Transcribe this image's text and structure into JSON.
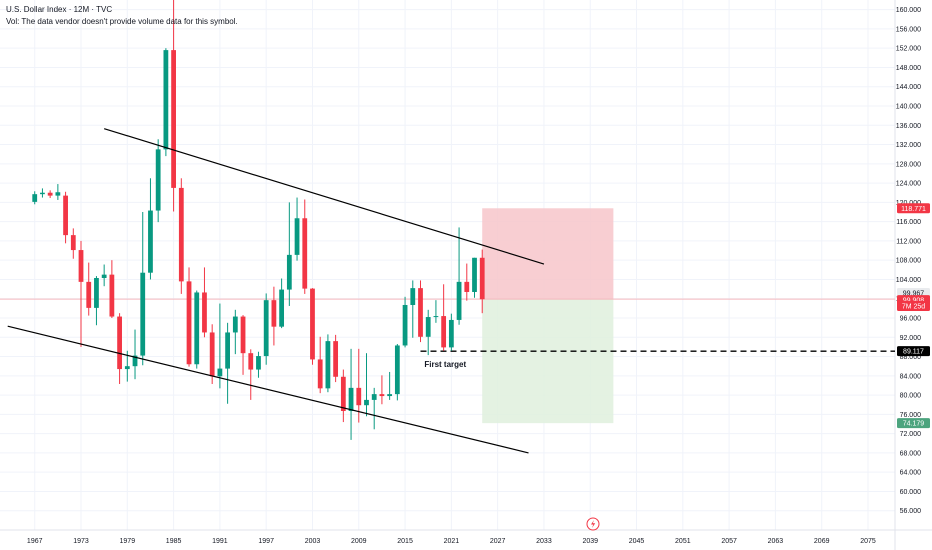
{
  "header": {
    "title": "U.S. Dollar Index · 12M · TVC",
    "vol_note": "Vol: The data vendor doesn't provide volume data for this symbol."
  },
  "colors": {
    "up": "#089981",
    "down": "#f23645",
    "stop_zone": "#f7c5ca",
    "target_zone": "#dff0dd",
    "trendline": "#000000",
    "hline": "#f5b7bd"
  },
  "icons": {
    "flash": "lightning-icon"
  },
  "chart_data": {
    "type": "candlestick",
    "title": "U.S. Dollar Index · 12M · TVC",
    "ylim": [
      52,
      162
    ],
    "xlim": [
      1962.5,
      2078.5
    ],
    "y_ticks": [
      "56.000",
      "60.000",
      "64.000",
      "68.000",
      "72.000",
      "76.000",
      "80.000",
      "84.000",
      "88.000",
      "92.000",
      "96.000",
      "100.000",
      "104.000",
      "108.000",
      "112.000",
      "116.000",
      "120.000",
      "124.000",
      "128.000",
      "132.000",
      "136.000",
      "140.000",
      "144.000",
      "148.000",
      "152.000",
      "156.000",
      "160.000"
    ],
    "x_ticks": [
      "1967",
      "1973",
      "1979",
      "1985",
      "1991",
      "1997",
      "2003",
      "2009",
      "2015",
      "2021",
      "2027",
      "2033",
      "2039",
      "2045",
      "2051",
      "2057",
      "2063",
      "2069",
      "2075"
    ],
    "candles": [
      {
        "x": 1967,
        "o": 120.1,
        "h": 122.3,
        "l": 119.6,
        "c": 121.7
      },
      {
        "x": 1968,
        "o": 121.7,
        "h": 122.9,
        "l": 121.0,
        "c": 122.0
      },
      {
        "x": 1969,
        "o": 122.0,
        "h": 122.5,
        "l": 120.9,
        "c": 121.4
      },
      {
        "x": 1970,
        "o": 121.4,
        "h": 123.8,
        "l": 120.5,
        "c": 122.1
      },
      {
        "x": 1971,
        "o": 121.4,
        "h": 122.2,
        "l": 111.5,
        "c": 113.2
      },
      {
        "x": 1972,
        "o": 113.2,
        "h": 114.6,
        "l": 108.3,
        "c": 110.1
      },
      {
        "x": 1973,
        "o": 110.1,
        "h": 112.0,
        "l": 90.0,
        "c": 103.5
      },
      {
        "x": 1974,
        "o": 103.5,
        "h": 107.5,
        "l": 96.5,
        "c": 98.1
      },
      {
        "x": 1975,
        "o": 98.1,
        "h": 104.7,
        "l": 94.5,
        "c": 104.3
      },
      {
        "x": 1976,
        "o": 104.3,
        "h": 107.1,
        "l": 102.6,
        "c": 105.0
      },
      {
        "x": 1977,
        "o": 105.0,
        "h": 108.0,
        "l": 96.0,
        "c": 96.3
      },
      {
        "x": 1978,
        "o": 96.3,
        "h": 97.0,
        "l": 82.3,
        "c": 85.4
      },
      {
        "x": 1979,
        "o": 85.4,
        "h": 89.2,
        "l": 82.8,
        "c": 86.0
      },
      {
        "x": 1980,
        "o": 86.0,
        "h": 93.6,
        "l": 83.3,
        "c": 88.2
      },
      {
        "x": 1981,
        "o": 88.2,
        "h": 118.0,
        "l": 86.2,
        "c": 105.4
      },
      {
        "x": 1982,
        "o": 105.4,
        "h": 125.0,
        "l": 104.0,
        "c": 118.3
      },
      {
        "x": 1983,
        "o": 118.3,
        "h": 133.1,
        "l": 115.9,
        "c": 131.0
      },
      {
        "x": 1984,
        "o": 131.0,
        "h": 152.0,
        "l": 129.6,
        "c": 151.6
      },
      {
        "x": 1985,
        "o": 151.6,
        "h": 164.7,
        "l": 118.1,
        "c": 123.0
      },
      {
        "x": 1986,
        "o": 123.0,
        "h": 125.0,
        "l": 101.0,
        "c": 103.6
      },
      {
        "x": 1987,
        "o": 103.6,
        "h": 106.5,
        "l": 85.9,
        "c": 86.4
      },
      {
        "x": 1988,
        "o": 86.4,
        "h": 101.7,
        "l": 85.5,
        "c": 101.3
      },
      {
        "x": 1989,
        "o": 101.3,
        "h": 106.5,
        "l": 92.0,
        "c": 93.0
      },
      {
        "x": 1990,
        "o": 93.0,
        "h": 94.7,
        "l": 82.3,
        "c": 83.9
      },
      {
        "x": 1991,
        "o": 83.9,
        "h": 99.0,
        "l": 81.4,
        "c": 85.5
      },
      {
        "x": 1992,
        "o": 85.5,
        "h": 95.0,
        "l": 78.2,
        "c": 93.0
      },
      {
        "x": 1993,
        "o": 93.0,
        "h": 97.7,
        "l": 88.5,
        "c": 96.3
      },
      {
        "x": 1994,
        "o": 96.3,
        "h": 96.6,
        "l": 84.2,
        "c": 88.7
      },
      {
        "x": 1995,
        "o": 88.7,
        "h": 89.5,
        "l": 79.0,
        "c": 85.3
      },
      {
        "x": 1996,
        "o": 85.3,
        "h": 89.0,
        "l": 83.6,
        "c": 88.1
      },
      {
        "x": 1997,
        "o": 88.1,
        "h": 101.1,
        "l": 86.3,
        "c": 99.7
      },
      {
        "x": 1998,
        "o": 99.7,
        "h": 102.5,
        "l": 90.3,
        "c": 94.2
      },
      {
        "x": 1999,
        "o": 94.2,
        "h": 104.2,
        "l": 93.9,
        "c": 101.9
      },
      {
        "x": 2000,
        "o": 101.9,
        "h": 120.0,
        "l": 98.5,
        "c": 109.1
      },
      {
        "x": 2001,
        "o": 109.1,
        "h": 121.0,
        "l": 107.9,
        "c": 116.7
      },
      {
        "x": 2002,
        "o": 116.7,
        "h": 120.6,
        "l": 101.0,
        "c": 102.1
      },
      {
        "x": 2003,
        "o": 102.1,
        "h": 102.2,
        "l": 86.3,
        "c": 87.4
      },
      {
        "x": 2004,
        "o": 87.4,
        "h": 92.1,
        "l": 80.4,
        "c": 81.4
      },
      {
        "x": 2005,
        "o": 81.4,
        "h": 92.6,
        "l": 80.6,
        "c": 91.2
      },
      {
        "x": 2006,
        "o": 91.2,
        "h": 92.5,
        "l": 82.7,
        "c": 83.8
      },
      {
        "x": 2007,
        "o": 83.8,
        "h": 85.3,
        "l": 74.4,
        "c": 76.7
      },
      {
        "x": 2008,
        "o": 76.7,
        "h": 89.6,
        "l": 70.7,
        "c": 81.5
      },
      {
        "x": 2009,
        "o": 81.5,
        "h": 89.6,
        "l": 74.3,
        "c": 77.9
      },
      {
        "x": 2010,
        "o": 77.9,
        "h": 88.7,
        "l": 75.6,
        "c": 79.0
      },
      {
        "x": 2011,
        "o": 79.0,
        "h": 81.5,
        "l": 72.9,
        "c": 80.2
      },
      {
        "x": 2012,
        "o": 80.2,
        "h": 84.1,
        "l": 78.1,
        "c": 79.8
      },
      {
        "x": 2013,
        "o": 79.8,
        "h": 84.8,
        "l": 79.0,
        "c": 80.2
      },
      {
        "x": 2014,
        "o": 80.2,
        "h": 90.6,
        "l": 78.9,
        "c": 90.3
      },
      {
        "x": 2015,
        "o": 90.3,
        "h": 100.4,
        "l": 89.9,
        "c": 98.7
      },
      {
        "x": 2016,
        "o": 98.7,
        "h": 103.8,
        "l": 91.9,
        "c": 102.2
      },
      {
        "x": 2017,
        "o": 102.2,
        "h": 103.8,
        "l": 91.0,
        "c": 92.1
      },
      {
        "x": 2018,
        "o": 92.1,
        "h": 97.7,
        "l": 88.3,
        "c": 96.2
      },
      {
        "x": 2019,
        "o": 96.2,
        "h": 99.7,
        "l": 95.0,
        "c": 96.4
      },
      {
        "x": 2020,
        "o": 96.4,
        "h": 103.0,
        "l": 89.2,
        "c": 89.9
      },
      {
        "x": 2021,
        "o": 89.9,
        "h": 96.9,
        "l": 89.2,
        "c": 95.6
      },
      {
        "x": 2022,
        "o": 95.6,
        "h": 114.8,
        "l": 94.6,
        "c": 103.5
      },
      {
        "x": 2023,
        "o": 103.5,
        "h": 107.3,
        "l": 99.6,
        "c": 101.4
      },
      {
        "x": 2024,
        "o": 101.4,
        "h": 108.5,
        "l": 100.2,
        "c": 108.5
      },
      {
        "x": 2025,
        "o": 108.5,
        "h": 110.2,
        "l": 97.0,
        "c": 99.9
      }
    ],
    "trendlines": [
      {
        "name": "upper-channel",
        "x1": 1976,
        "y1": 135.3,
        "x2": 2033,
        "y2": 107.2
      },
      {
        "name": "lower-channel",
        "x1": 1963.5,
        "y1": 94.3,
        "x2": 2031,
        "y2": 68.0
      }
    ],
    "zones": [
      {
        "name": "stop-zone",
        "x1": 2025,
        "x2": 2042,
        "y_top": 118.771,
        "y_bottom": 99.908
      },
      {
        "name": "target-zone",
        "x1": 2025,
        "x2": 2042,
        "y_top": 99.908,
        "y_bottom": 74.179
      }
    ],
    "hlines": [
      {
        "name": "first-target-line",
        "x_start": 2017,
        "y": 89.117,
        "style": "dashed"
      },
      {
        "name": "current-price-line",
        "y": 99.908,
        "style": "solid"
      }
    ],
    "annotations": [
      {
        "text": "First target",
        "x": 2017.5,
        "y": 85.8
      }
    ],
    "price_badges": [
      {
        "value": "118.771",
        "y": 118.771,
        "bg": "#f23645",
        "fg": "#ffffff"
      },
      {
        "value": "99.967",
        "y": 101.2,
        "bg": "#e9ebee",
        "fg": "#131722"
      },
      {
        "value": "99.908",
        "y": 99.7,
        "bg": "#f23645",
        "fg": "#ffffff"
      },
      {
        "value": "7M 25d",
        "y": 98.5,
        "bg": "#f23645",
        "fg": "#ffffff"
      },
      {
        "value": "89.117",
        "y": 89.117,
        "bg": "#000000",
        "fg": "#ffffff"
      },
      {
        "value": "74.179",
        "y": 74.179,
        "bg": "#4ca47e",
        "fg": "#ffffff"
      }
    ]
  }
}
